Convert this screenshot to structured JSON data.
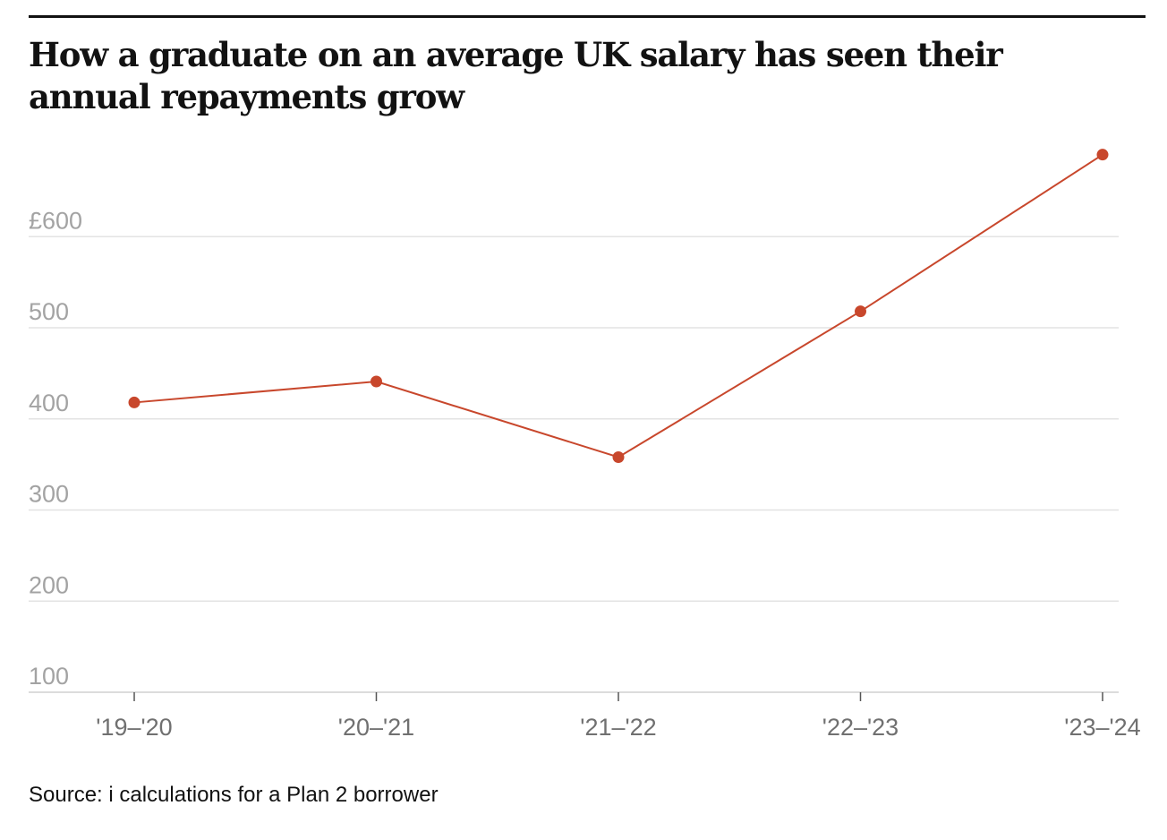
{
  "chart_data": {
    "type": "line",
    "title": "How a graduate on an average UK salary has seen their annual repayments grow",
    "categories": [
      "'19–'20",
      "'20–'21",
      "'21–'22",
      "'22–'23",
      "'23–'24"
    ],
    "series": [
      {
        "values": [
          418,
          441,
          358,
          518,
          690
        ]
      }
    ],
    "y_tick_values": [
      100,
      200,
      300,
      400,
      500,
      600
    ],
    "y_tick_labels": [
      "100",
      "200",
      "300",
      "400",
      "500",
      "£600"
    ],
    "ylim": [
      100,
      690
    ],
    "grid": true,
    "source": "Source: i calculations for a Plan 2 borrower",
    "colors": {
      "line": "#c8472c",
      "grid": "#e3e3e3",
      "axis": "#d0d0d0",
      "title": "#121212",
      "y_tick_text": "#a3a3a3",
      "x_tick_text": "#707070"
    }
  }
}
